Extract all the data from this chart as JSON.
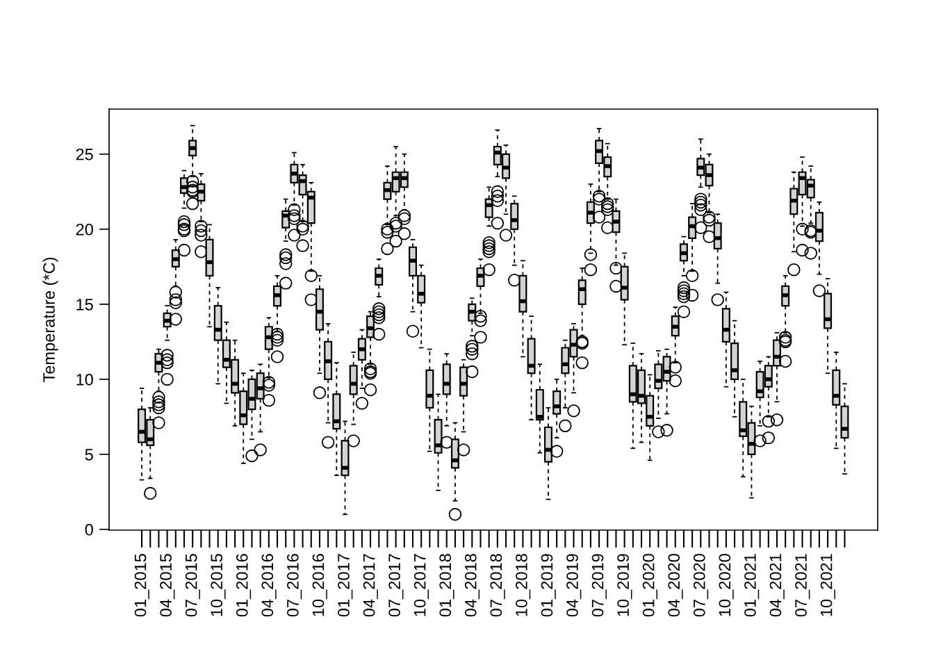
{
  "chart_data": {
    "type": "box",
    "ylabel": "Temperature (*C)",
    "ylim": [
      -0.05,
      28.0
    ],
    "yticks": [
      0,
      5,
      10,
      15,
      20,
      25
    ],
    "grid": false,
    "color": "#d3d3d3",
    "categories": [
      "01_2015",
      null,
      null,
      "04_2015",
      null,
      null,
      "07_2015",
      null,
      null,
      "10_2015",
      null,
      null,
      "01_2016",
      null,
      null,
      "04_2016",
      null,
      null,
      "07_2016",
      null,
      null,
      "10_2016",
      null,
      null,
      "01_2017",
      null,
      null,
      "04_2017",
      null,
      null,
      "07_2017",
      null,
      null,
      "10_2017",
      null,
      null,
      "01_2018",
      null,
      null,
      "04_2018",
      null,
      null,
      "07_2018",
      null,
      null,
      "10_2018",
      null,
      null,
      "01_2019",
      null,
      null,
      "04_2019",
      null,
      null,
      "07_2019",
      null,
      null,
      "10_2019",
      null,
      null,
      "01_2020",
      null,
      null,
      "04_2020",
      null,
      null,
      "07_2020",
      null,
      null,
      "10_2020",
      null,
      null,
      "01_2021",
      null,
      null,
      "04_2021",
      null,
      null,
      "07_2021",
      null,
      null,
      "10_2021",
      null,
      null
    ],
    "boxes": [
      {
        "low": 3.3,
        "q1": 5.8,
        "median": 6.5,
        "q3": 8.0,
        "high": 9.4
      },
      {
        "low": 3.4,
        "q1": 5.6,
        "median": 6.0,
        "q3": 7.3,
        "high": 8.1,
        "outliers": [
          2.4
        ]
      },
      {
        "low": 9.2,
        "q1": 10.5,
        "median": 11.1,
        "q3": 11.7,
        "high": 12.0,
        "outliers": [
          8.8,
          8.5,
          8.3,
          8.1,
          7.1
        ]
      },
      {
        "low": 12.6,
        "q1": 13.5,
        "median": 13.9,
        "q3": 14.4,
        "high": 14.9,
        "outliers": [
          11.6,
          11.3,
          11.1,
          10.0
        ]
      },
      {
        "low": 16.2,
        "q1": 17.5,
        "median": 18.0,
        "q3": 18.6,
        "high": 19.3,
        "outliers": [
          15.8,
          15.3,
          15.1,
          14.0
        ]
      },
      {
        "low": 21.4,
        "q1": 22.4,
        "median": 22.8,
        "q3": 23.4,
        "high": 23.9,
        "outliers": [
          20.5,
          20.3,
          20.0,
          19.9,
          18.6
        ]
      },
      {
        "low": 23.5,
        "q1": 24.9,
        "median": 25.4,
        "q3": 25.9,
        "high": 26.9,
        "outliers": [
          23.2,
          22.8,
          22.6,
          22.5,
          21.7
        ]
      },
      {
        "low": 20.5,
        "q1": 21.9,
        "median": 22.5,
        "q3": 23.0,
        "high": 23.7,
        "outliers": [
          20.2,
          19.9,
          19.6,
          18.5
        ]
      },
      {
        "low": 13.5,
        "q1": 16.9,
        "median": 17.8,
        "q3": 19.3,
        "high": 20.3
      },
      {
        "low": 9.7,
        "q1": 12.6,
        "median": 13.3,
        "q3": 14.9,
        "high": 16.1
      },
      {
        "low": 8.4,
        "q1": 10.8,
        "median": 11.3,
        "q3": 12.6,
        "high": 13.8
      },
      {
        "low": 6.9,
        "q1": 9.1,
        "median": 9.7,
        "q3": 11.3,
        "high": 12.6
      },
      {
        "low": 4.4,
        "q1": 7.0,
        "median": 7.6,
        "q3": 9.2,
        "high": 10.4
      },
      {
        "low": 6.0,
        "q1": 8.0,
        "median": 8.7,
        "q3": 10.0,
        "high": 10.6,
        "outliers": [
          4.9
        ]
      },
      {
        "low": 6.5,
        "q1": 8.7,
        "median": 9.4,
        "q3": 10.4,
        "high": 11.0,
        "outliers": [
          5.3
        ]
      },
      {
        "low": 10.1,
        "q1": 12.0,
        "median": 12.8,
        "q3": 13.5,
        "high": 14.1,
        "outliers": [
          9.8,
          9.6,
          8.6
        ]
      },
      {
        "low": 13.2,
        "q1": 14.9,
        "median": 15.6,
        "q3": 16.2,
        "high": 16.9,
        "outliers": [
          13.0,
          12.8,
          12.6,
          11.5
        ]
      },
      {
        "low": 19.2,
        "q1": 20.1,
        "median": 20.9,
        "q3": 21.2,
        "high": 22.0,
        "outliers": [
          18.3,
          18.1,
          17.7,
          16.4
        ]
      },
      {
        "low": 21.6,
        "q1": 23.1,
        "median": 23.7,
        "q3": 24.3,
        "high": 25.1,
        "outliers": [
          21.3,
          20.9,
          20.7,
          19.6
        ]
      },
      {
        "low": 20.5,
        "q1": 22.3,
        "median": 23.2,
        "q3": 23.6,
        "high": 24.3,
        "outliers": [
          20.2,
          20.0,
          18.9
        ]
      },
      {
        "low": 17.2,
        "q1": 20.4,
        "median": 22.1,
        "q3": 22.5,
        "high": 23.1,
        "outliers": [
          16.9,
          15.3
        ]
      },
      {
        "low": 10.4,
        "q1": 13.3,
        "median": 14.5,
        "q3": 16.0,
        "high": 16.9,
        "outliers": [
          9.1
        ]
      },
      {
        "low": 7.1,
        "q1": 10.0,
        "median": 11.2,
        "q3": 12.5,
        "high": 13.7,
        "outliers": [
          5.8
        ]
      },
      {
        "low": 3.6,
        "q1": 6.7,
        "median": 7.2,
        "q3": 9.0,
        "high": 11.1
      },
      {
        "low": 1.0,
        "q1": 3.6,
        "median": 4.1,
        "q3": 5.9,
        "high": 7.2
      },
      {
        "low": 7.0,
        "q1": 9.0,
        "median": 9.7,
        "q3": 10.9,
        "high": 11.8,
        "outliers": [
          5.9
        ]
      },
      {
        "low": 9.4,
        "q1": 11.3,
        "median": 12.0,
        "q3": 12.7,
        "high": 13.3,
        "outliers": [
          8.4
        ]
      },
      {
        "low": 11.0,
        "q1": 12.8,
        "median": 13.4,
        "q3": 14.2,
        "high": 14.5,
        "outliers": [
          10.7,
          10.5,
          10.4,
          9.3
        ]
      },
      {
        "low": 15.5,
        "q1": 16.3,
        "median": 16.9,
        "q3": 17.4,
        "high": 18.0,
        "outliers": [
          14.7,
          14.5,
          14.3,
          14.1,
          13.0
        ]
      },
      {
        "low": 20.3,
        "q1": 22.0,
        "median": 22.6,
        "q3": 23.1,
        "high": 24.2,
        "outliers": [
          20.0,
          19.8,
          18.7
        ]
      },
      {
        "low": 20.9,
        "q1": 22.5,
        "median": 23.4,
        "q3": 23.8,
        "high": 25.5,
        "outliers": [
          20.4,
          20.2,
          19.2
        ]
      },
      {
        "low": 21.3,
        "q1": 22.8,
        "median": 23.4,
        "q3": 23.8,
        "high": 25.0,
        "outliers": [
          20.9,
          20.7,
          19.7
        ]
      },
      {
        "low": 14.5,
        "q1": 16.9,
        "median": 17.9,
        "q3": 18.8,
        "high": 19.3,
        "outliers": [
          13.2
        ]
      },
      {
        "low": 12.1,
        "q1": 15.1,
        "median": 15.7,
        "q3": 16.9,
        "high": 17.6
      },
      {
        "low": 5.2,
        "q1": 8.1,
        "median": 8.9,
        "q3": 10.6,
        "high": 12.0
      },
      {
        "low": 2.6,
        "q1": 5.1,
        "median": 5.6,
        "q3": 7.3,
        "high": 9.0
      },
      {
        "low": 6.9,
        "q1": 9.0,
        "median": 9.7,
        "q3": 11.0,
        "high": 11.7,
        "outliers": [
          5.8
        ]
      },
      {
        "low": 1.9,
        "q1": 4.1,
        "median": 4.6,
        "q3": 6.0,
        "high": 7.1,
        "outliers": [
          1.0
        ]
      },
      {
        "low": 6.5,
        "q1": 8.9,
        "median": 9.7,
        "q3": 10.8,
        "high": 11.3,
        "outliers": [
          5.3
        ]
      },
      {
        "low": 12.9,
        "q1": 13.9,
        "median": 14.5,
        "q3": 15.0,
        "high": 15.4,
        "outliers": [
          12.2,
          12.0,
          11.7,
          10.5
        ]
      },
      {
        "low": 14.4,
        "q1": 16.2,
        "median": 16.9,
        "q3": 17.4,
        "high": 18.0,
        "outliers": [
          14.2,
          13.9,
          12.8
        ]
      },
      {
        "low": 20.2,
        "q1": 20.8,
        "median": 21.6,
        "q3": 22.0,
        "high": 22.8,
        "outliers": [
          19.1,
          18.9,
          18.7,
          18.5,
          17.3
        ]
      },
      {
        "low": 23.5,
        "q1": 24.3,
        "median": 25.1,
        "q3": 25.5,
        "high": 26.6,
        "outliers": [
          22.5,
          22.2,
          21.9,
          20.4
        ]
      },
      {
        "low": 21.0,
        "q1": 23.4,
        "median": 24.1,
        "q3": 25.0,
        "high": 25.6,
        "outliers": [
          19.6
        ]
      },
      {
        "low": 17.6,
        "q1": 20.0,
        "median": 20.6,
        "q3": 21.7,
        "high": 22.2,
        "outliers": [
          16.6
        ]
      },
      {
        "low": 11.5,
        "q1": 14.5,
        "median": 15.2,
        "q3": 16.9,
        "high": 17.9
      },
      {
        "low": 7.3,
        "q1": 10.4,
        "median": 10.9,
        "q3": 12.7,
        "high": 14.2
      },
      {
        "low": 5.1,
        "q1": 7.3,
        "median": 7.5,
        "q3": 9.3,
        "high": 11.0
      },
      {
        "low": 2.0,
        "q1": 4.5,
        "median": 5.3,
        "q3": 6.8,
        "high": 8.1
      },
      {
        "low": 6.1,
        "q1": 7.7,
        "median": 8.2,
        "q3": 9.2,
        "high": 10.0,
        "outliers": [
          5.2
        ]
      },
      {
        "low": 8.1,
        "q1": 10.4,
        "median": 11.0,
        "q3": 12.1,
        "high": 12.6,
        "outliers": [
          6.9
        ]
      },
      {
        "low": 9.1,
        "q1": 11.5,
        "median": 12.3,
        "q3": 13.3,
        "high": 13.7,
        "outliers": [
          7.9
        ]
      },
      {
        "low": 12.9,
        "q1": 15.0,
        "median": 16.0,
        "q3": 16.6,
        "high": 17.4,
        "outliers": [
          12.5,
          12.4,
          11.1
        ]
      },
      {
        "low": 18.4,
        "q1": 20.4,
        "median": 21.1,
        "q3": 21.8,
        "high": 23.0,
        "outliers": [
          18.3,
          17.3
        ]
      },
      {
        "low": 22.5,
        "q1": 24.4,
        "median": 25.2,
        "q3": 25.9,
        "high": 26.7,
        "outliers": [
          22.2,
          22.0,
          20.8
        ]
      },
      {
        "low": 22.0,
        "q1": 23.5,
        "median": 24.2,
        "q3": 24.8,
        "high": 25.7,
        "outliers": [
          21.7,
          21.5,
          21.3,
          20.1
        ]
      },
      {
        "low": 17.6,
        "q1": 19.8,
        "median": 20.5,
        "q3": 21.2,
        "high": 22.0,
        "outliers": [
          17.4,
          16.2
        ]
      },
      {
        "low": 12.3,
        "q1": 15.3,
        "median": 16.1,
        "q3": 17.5,
        "high": 18.4
      },
      {
        "low": 5.4,
        "q1": 8.5,
        "median": 9.0,
        "q3": 10.9,
        "high": 12.4
      },
      {
        "low": 5.8,
        "q1": 8.4,
        "median": 8.9,
        "q3": 10.6,
        "high": 11.7
      },
      {
        "low": 4.6,
        "q1": 6.9,
        "median": 7.5,
        "q3": 8.9,
        "high": 10.3
      },
      {
        "low": 7.4,
        "q1": 9.4,
        "median": 9.9,
        "q3": 11.0,
        "high": 11.9,
        "outliers": [
          6.5
        ]
      },
      {
        "low": 7.7,
        "q1": 9.9,
        "median": 10.5,
        "q3": 11.5,
        "high": 12.0,
        "outliers": [
          6.6
        ]
      },
      {
        "low": 11.1,
        "q1": 12.9,
        "median": 13.5,
        "q3": 14.2,
        "high": 14.8,
        "outliers": [
          10.8,
          9.9
        ]
      },
      {
        "low": 16.9,
        "q1": 17.9,
        "median": 18.4,
        "q3": 19.0,
        "high": 19.5,
        "outliers": [
          16.1,
          15.9,
          15.7,
          15.5,
          14.5
        ]
      },
      {
        "low": 17.2,
        "q1": 19.4,
        "median": 20.2,
        "q3": 20.8,
        "high": 21.7,
        "outliers": [
          16.9,
          15.6
        ]
      },
      {
        "low": 22.8,
        "q1": 23.6,
        "median": 24.1,
        "q3": 24.7,
        "high": 26.0,
        "outliers": [
          22.0,
          21.8,
          21.6,
          21.3,
          20.1
        ]
      },
      {
        "low": 21.1,
        "q1": 22.9,
        "median": 23.6,
        "q3": 24.3,
        "high": 25.0,
        "outliers": [
          20.8,
          20.6,
          19.5
        ]
      },
      {
        "low": 16.4,
        "q1": 18.7,
        "median": 19.4,
        "q3": 20.4,
        "high": 21.0,
        "outliers": [
          15.3
        ]
      },
      {
        "low": 9.5,
        "q1": 12.5,
        "median": 13.3,
        "q3": 14.7,
        "high": 15.8
      },
      {
        "low": 7.5,
        "q1": 10.0,
        "median": 10.6,
        "q3": 12.4,
        "high": 13.9
      },
      {
        "low": 3.5,
        "q1": 6.2,
        "median": 6.6,
        "q3": 8.5,
        "high": 10.0
      },
      {
        "low": 2.1,
        "q1": 5.0,
        "median": 5.7,
        "q3": 7.1,
        "high": 8.2
      },
      {
        "low": 6.9,
        "q1": 8.8,
        "median": 9.2,
        "q3": 10.5,
        "high": 11.2,
        "outliers": [
          5.9
        ]
      },
      {
        "low": 7.5,
        "q1": 9.5,
        "median": 10.0,
        "q3": 10.9,
        "high": 11.5,
        "outliers": [
          7.2,
          6.1
        ]
      },
      {
        "low": 8.5,
        "q1": 10.9,
        "median": 11.5,
        "q3": 12.6,
        "high": 13.1,
        "outliers": [
          7.3
        ]
      },
      {
        "low": 13.1,
        "q1": 14.9,
        "median": 15.6,
        "q3": 16.2,
        "high": 16.9,
        "outliers": [
          12.8,
          12.6,
          12.5,
          11.2
        ]
      },
      {
        "low": 18.5,
        "q1": 21.0,
        "median": 21.9,
        "q3": 22.7,
        "high": 23.8,
        "outliers": [
          17.3
        ]
      },
      {
        "low": 20.2,
        "q1": 22.3,
        "median": 23.4,
        "q3": 23.8,
        "high": 24.8,
        "outliers": [
          20.0,
          18.6
        ]
      },
      {
        "low": 20.4,
        "q1": 22.1,
        "median": 22.9,
        "q3": 23.3,
        "high": 24.2,
        "outliers": [
          19.9,
          19.8,
          18.4
        ]
      },
      {
        "low": 17.0,
        "q1": 19.2,
        "median": 19.9,
        "q3": 21.1,
        "high": 21.8,
        "outliers": [
          15.9
        ]
      },
      {
        "low": 10.4,
        "q1": 13.4,
        "median": 14.0,
        "q3": 15.7,
        "high": 16.7
      },
      {
        "low": 5.4,
        "q1": 8.3,
        "median": 8.9,
        "q3": 10.6,
        "high": 11.8
      },
      {
        "low": 3.7,
        "q1": 6.1,
        "median": 6.7,
        "q3": 8.2,
        "high": 9.7
      }
    ]
  }
}
